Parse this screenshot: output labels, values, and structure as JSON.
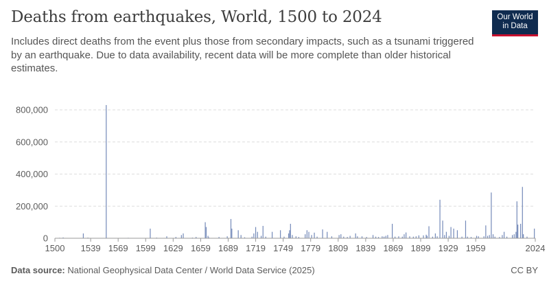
{
  "header": {
    "title": "Deaths from earthquakes, World, 1500 to 2024",
    "subtitle": "Includes direct deaths from the event plus those from secondary impacts, such as a tsunami triggered by an earthquake. Due to data availability, recent data will be more complete than older historical estimates."
  },
  "logo": {
    "line1": "Our World",
    "line2": "in Data"
  },
  "footer": {
    "source_label": "Data source:",
    "source_text": "National Geophysical Data Center / World Data Service (2025)",
    "license": "CC BY"
  },
  "colors": {
    "bar": "#7389b8",
    "grid": "#dddddd",
    "text": "#5b5b5b"
  },
  "chart_data": {
    "type": "bar",
    "title": "Deaths from earthquakes, World, 1500 to 2024",
    "xlabel": "",
    "ylabel": "",
    "xlim": [
      1500,
      2024
    ],
    "ylim": [
      0,
      800000
    ],
    "y_ticks": [
      0,
      200000,
      400000,
      600000,
      800000
    ],
    "y_tick_labels": [
      "0",
      "200,000",
      "400,000",
      "600,000",
      "800,000"
    ],
    "x_ticks": [
      1500,
      1539,
      1569,
      1599,
      1629,
      1659,
      1689,
      1719,
      1749,
      1779,
      1809,
      1839,
      1869,
      1899,
      1929,
      1959,
      2024
    ],
    "x_tick_labels": [
      "1500",
      "1539",
      "1569",
      "1599",
      "1629",
      "1659",
      "1689",
      "1719",
      "1749",
      "1779",
      "1809",
      "1839",
      "1869",
      "1899",
      "1929",
      "1959",
      "2024"
    ],
    "grid": true,
    "series": [
      {
        "name": "Deaths from earthquakes",
        "points": [
          [
            1505,
            3000
          ],
          [
            1509,
            5000
          ],
          [
            1515,
            2000
          ],
          [
            1531,
            30000
          ],
          [
            1536,
            4000
          ],
          [
            1542,
            2000
          ],
          [
            1556,
            830000
          ],
          [
            1570,
            2000
          ],
          [
            1580,
            3000
          ],
          [
            1597,
            2000
          ],
          [
            1604,
            60000
          ],
          [
            1611,
            4000
          ],
          [
            1622,
            12000
          ],
          [
            1632,
            8000
          ],
          [
            1638,
            20000
          ],
          [
            1640,
            30000
          ],
          [
            1650,
            4000
          ],
          [
            1654,
            8000
          ],
          [
            1664,
            100000
          ],
          [
            1665,
            70000
          ],
          [
            1667,
            15000
          ],
          [
            1668,
            5000
          ],
          [
            1679,
            8000
          ],
          [
            1688,
            12000
          ],
          [
            1692,
            120000
          ],
          [
            1693,
            60000
          ],
          [
            1700,
            50000
          ],
          [
            1703,
            20000
          ],
          [
            1707,
            6000
          ],
          [
            1715,
            10000
          ],
          [
            1717,
            30000
          ],
          [
            1719,
            70000
          ],
          [
            1721,
            40000
          ],
          [
            1725,
            15000
          ],
          [
            1727,
            77000
          ],
          [
            1730,
            10000
          ],
          [
            1737,
            40000
          ],
          [
            1746,
            50000
          ],
          [
            1750,
            10000
          ],
          [
            1755,
            30000
          ],
          [
            1756,
            50000
          ],
          [
            1757,
            90000
          ],
          [
            1759,
            20000
          ],
          [
            1763,
            12000
          ],
          [
            1766,
            8000
          ],
          [
            1773,
            25000
          ],
          [
            1775,
            50000
          ],
          [
            1777,
            40000
          ],
          [
            1780,
            20000
          ],
          [
            1783,
            35000
          ],
          [
            1786,
            10000
          ],
          [
            1792,
            55000
          ],
          [
            1797,
            40000
          ],
          [
            1802,
            12000
          ],
          [
            1810,
            20000
          ],
          [
            1812,
            25000
          ],
          [
            1815,
            10000
          ],
          [
            1819,
            8000
          ],
          [
            1822,
            15000
          ],
          [
            1828,
            30000
          ],
          [
            1830,
            12000
          ],
          [
            1835,
            12000
          ],
          [
            1840,
            8000
          ],
          [
            1847,
            20000
          ],
          [
            1850,
            10000
          ],
          [
            1853,
            8000
          ],
          [
            1857,
            12000
          ],
          [
            1859,
            10000
          ],
          [
            1861,
            15000
          ],
          [
            1863,
            20000
          ],
          [
            1868,
            90000
          ],
          [
            1871,
            10000
          ],
          [
            1875,
            12000
          ],
          [
            1879,
            10000
          ],
          [
            1881,
            25000
          ],
          [
            1883,
            36000
          ],
          [
            1887,
            12000
          ],
          [
            1891,
            10000
          ],
          [
            1894,
            12000
          ],
          [
            1897,
            18000
          ],
          [
            1902,
            18000
          ],
          [
            1905,
            22000
          ],
          [
            1906,
            15000
          ],
          [
            1908,
            75000
          ],
          [
            1912,
            10000
          ],
          [
            1915,
            30000
          ],
          [
            1917,
            12000
          ],
          [
            1920,
            240000
          ],
          [
            1923,
            110000
          ],
          [
            1925,
            20000
          ],
          [
            1927,
            40000
          ],
          [
            1930,
            15000
          ],
          [
            1932,
            70000
          ],
          [
            1935,
            60000
          ],
          [
            1939,
            50000
          ],
          [
            1944,
            10000
          ],
          [
            1948,
            110000
          ],
          [
            1950,
            10000
          ],
          [
            1954,
            8000
          ],
          [
            1960,
            15000
          ],
          [
            1962,
            12000
          ],
          [
            1968,
            12000
          ],
          [
            1970,
            80000
          ],
          [
            1972,
            15000
          ],
          [
            1974,
            20000
          ],
          [
            1976,
            285000
          ],
          [
            1978,
            25000
          ],
          [
            1980,
            10000
          ],
          [
            1985,
            8000
          ],
          [
            1988,
            20000
          ],
          [
            1990,
            40000
          ],
          [
            1993,
            10000
          ],
          [
            1999,
            20000
          ],
          [
            2001,
            25000
          ],
          [
            2003,
            40000
          ],
          [
            2004,
            230000
          ],
          [
            2005,
            85000
          ],
          [
            2008,
            90000
          ],
          [
            2010,
            320000
          ],
          [
            2011,
            25000
          ],
          [
            2015,
            10000
          ],
          [
            2023,
            60000
          ]
        ]
      }
    ]
  }
}
